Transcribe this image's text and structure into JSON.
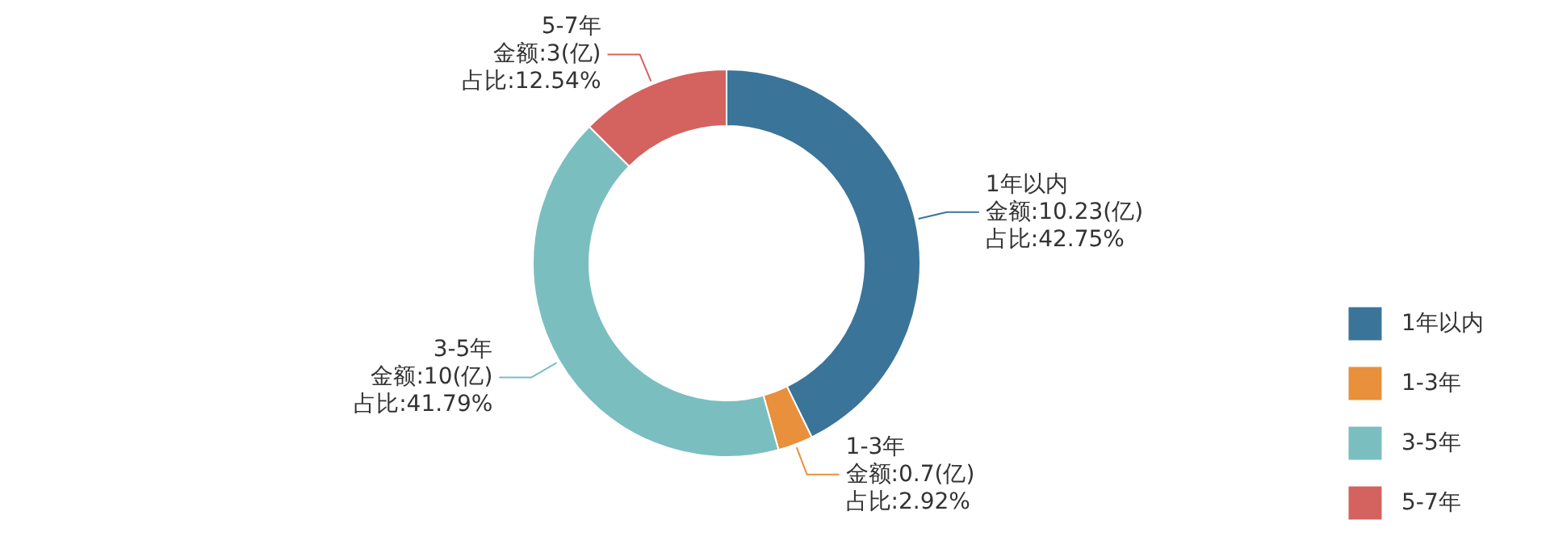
{
  "chart_data": {
    "type": "donut",
    "categories": [
      "1年以内",
      "1-3年",
      "3-5年",
      "5-7年"
    ],
    "values": [
      10.23,
      0.7,
      10,
      3
    ],
    "colors": [
      "#3b7499",
      "#e8903c",
      "#7bbec0",
      "#d4625f"
    ],
    "value_labels": [
      "金额:10.23(亿)",
      "金额:0.7(亿)",
      "金额:10(亿)",
      "金额:3(亿)"
    ],
    "annotations": [
      "占比:42.75%",
      "占比:2.92%",
      "占比:41.79%",
      "占比:12.54%"
    ],
    "legend": "bottom right"
  }
}
